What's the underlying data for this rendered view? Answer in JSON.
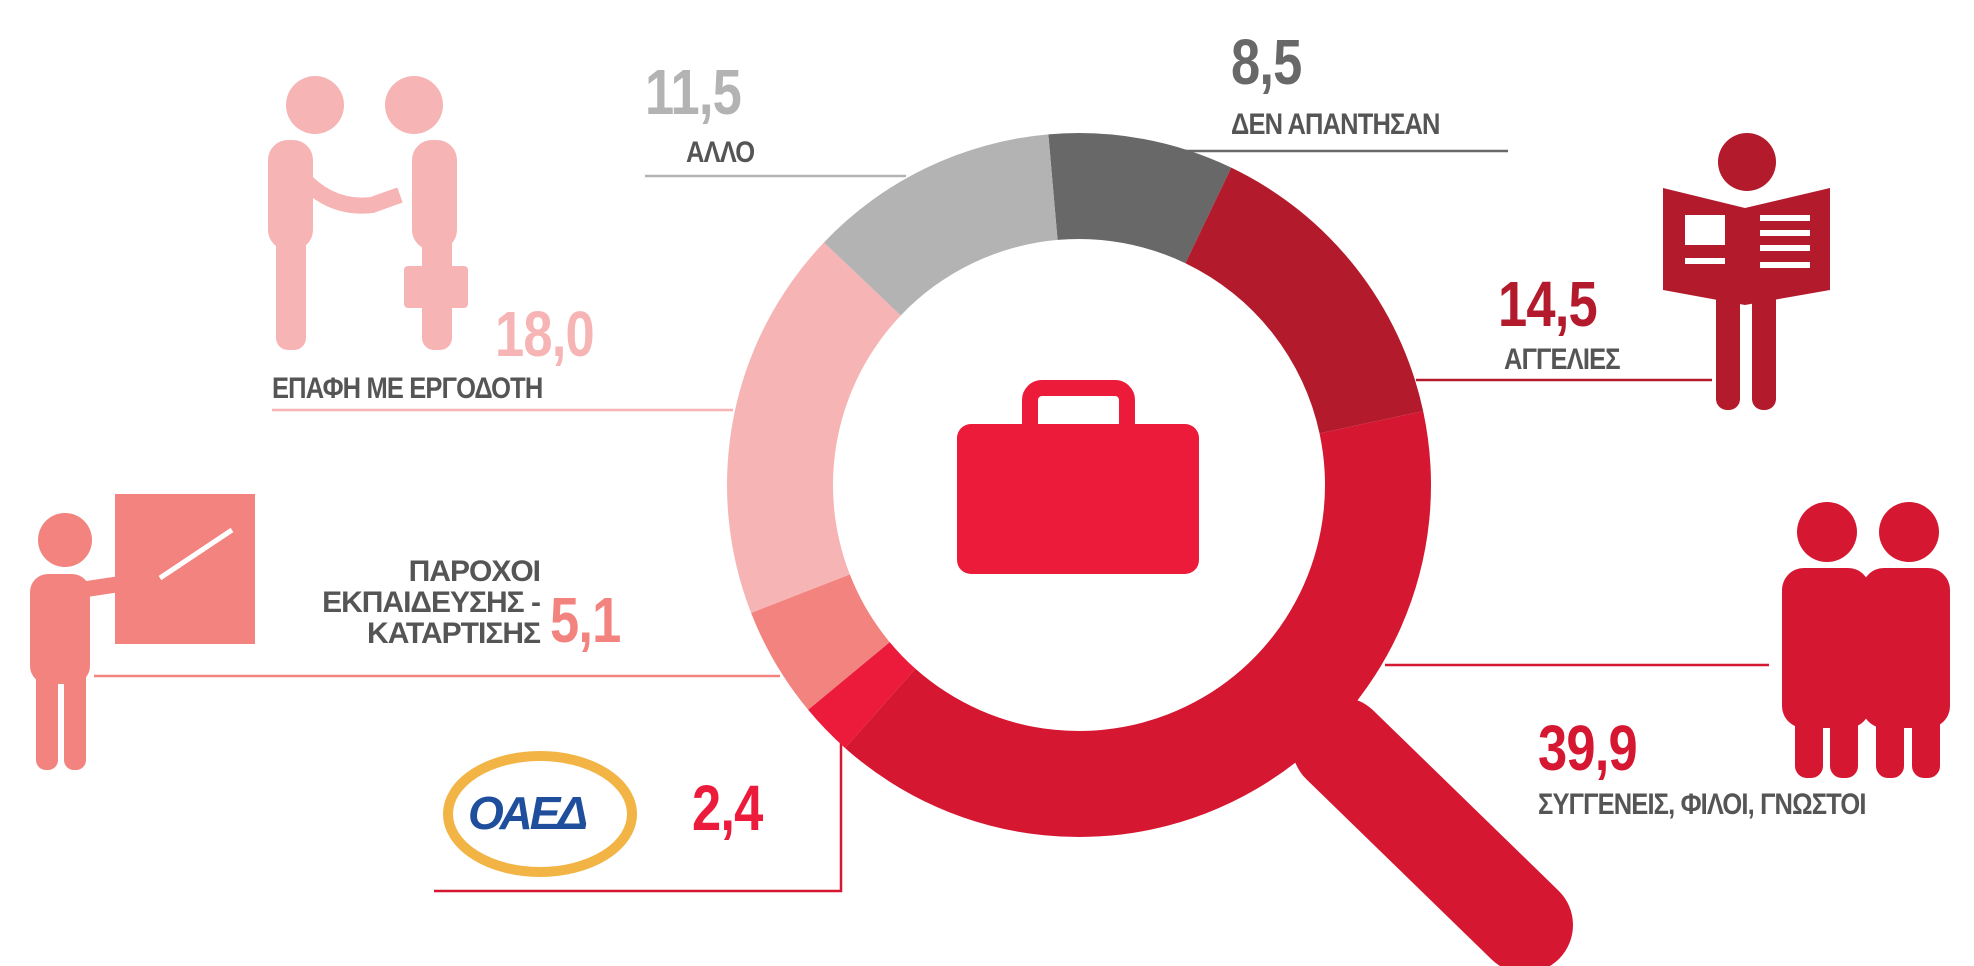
{
  "chart_data": {
    "type": "pie",
    "donut": true,
    "categories": [
      "ΔΕΝ ΑΠΑΝΤΗΣΑΝ",
      "ΑΓΓΕΛΙΕΣ",
      "ΣΥΓΓΕΝΕΙΣ, ΦΙΛΟΙ, ΓΝΩΣΤΟΙ",
      "ΟΑΕΔ",
      "ΠΑΡΟΧΟΙ ΕΚΠΑΙΔΕΥΣΗΣ - ΚΑΤΑΡΤΙΣΗΣ",
      "ΕΠΑΦΗ ΜΕ ΕΡΓΟΔΟΤΗ",
      "ΑΛΛΟ"
    ],
    "values": [
      8.5,
      14.5,
      39.9,
      2.4,
      5.1,
      18.0,
      11.5
    ],
    "value_labels": [
      "8,5",
      "14,5",
      "39,9",
      "2,4",
      "5,1",
      "18,0",
      "11,5"
    ],
    "colors": [
      "#686868",
      "#b31b2c",
      "#d61731",
      "#ec1b3b",
      "#f2837f",
      "#f7b4b4",
      "#b3b3b3"
    ]
  }
}
